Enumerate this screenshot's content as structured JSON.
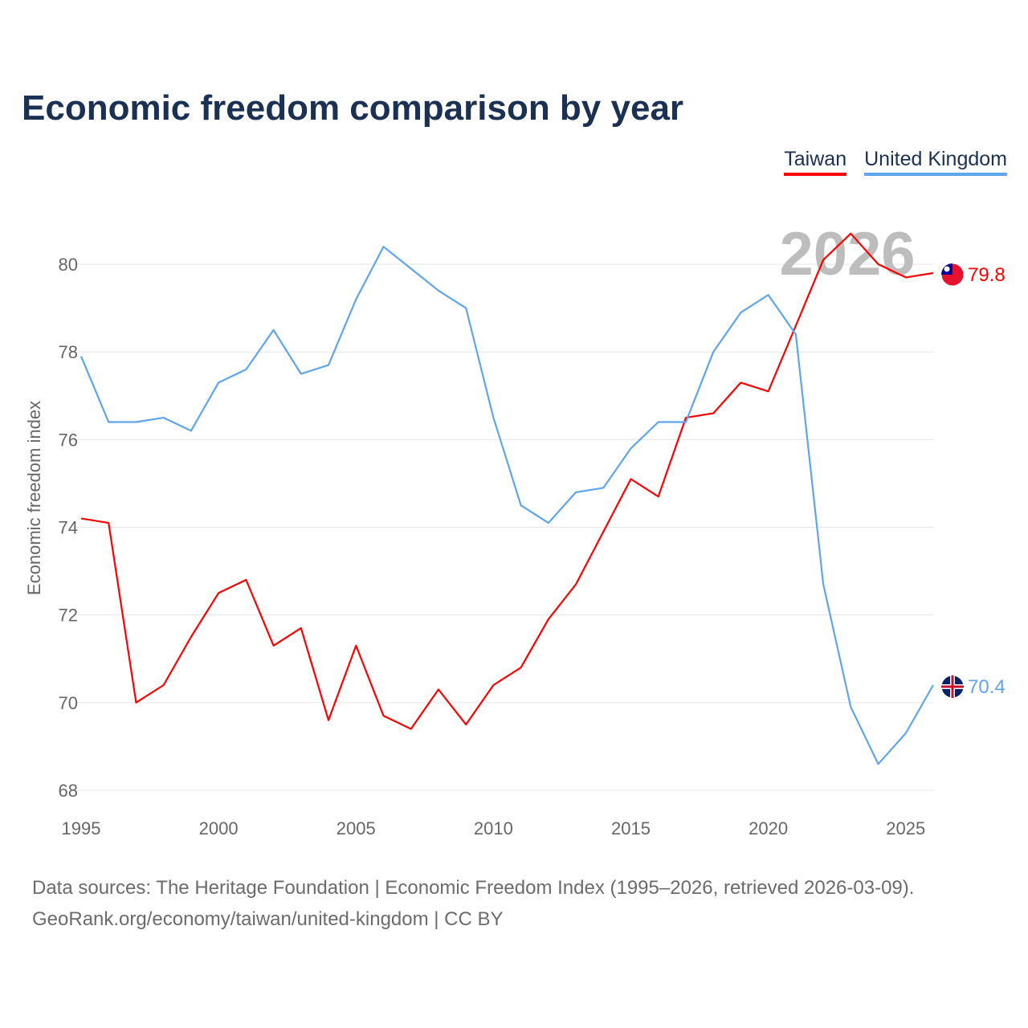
{
  "chart_data": {
    "type": "line",
    "title": "Economic freedom comparison by year",
    "xlabel": "",
    "ylabel": "Economic freedom index",
    "xlim": [
      1995,
      2026
    ],
    "ylim": [
      68,
      81
    ],
    "yticks": [
      68,
      70,
      72,
      74,
      76,
      78,
      80
    ],
    "xticks": [
      1995,
      2000,
      2005,
      2010,
      2015,
      2020,
      2025
    ],
    "grid": true,
    "legend_position": "top-right",
    "highlight_year": "2026",
    "x": [
      1995,
      1996,
      1997,
      1998,
      1999,
      2000,
      2001,
      2002,
      2003,
      2004,
      2005,
      2006,
      2007,
      2008,
      2009,
      2010,
      2011,
      2012,
      2013,
      2014,
      2015,
      2016,
      2017,
      2018,
      2019,
      2020,
      2021,
      2022,
      2023,
      2024,
      2025,
      2026
    ],
    "series": [
      {
        "name": "Taiwan",
        "color": "#ff0000",
        "end_label": "79.8",
        "values": [
          74.2,
          74.1,
          70.0,
          70.4,
          71.5,
          72.5,
          72.8,
          71.3,
          71.7,
          69.6,
          71.3,
          69.7,
          69.4,
          70.3,
          69.5,
          70.4,
          70.8,
          71.9,
          72.7,
          73.9,
          75.1,
          74.7,
          76.5,
          76.6,
          77.3,
          77.1,
          78.6,
          80.1,
          80.7,
          80.0,
          79.7,
          79.8
        ]
      },
      {
        "name": "United Kingdom",
        "color": "#5ea5ec",
        "end_label": "70.4",
        "values": [
          77.9,
          76.4,
          76.4,
          76.5,
          76.2,
          77.3,
          77.6,
          78.5,
          77.5,
          77.7,
          79.2,
          80.4,
          79.9,
          79.4,
          79.0,
          76.5,
          74.5,
          74.1,
          74.8,
          74.9,
          75.8,
          76.4,
          76.4,
          78.0,
          78.9,
          79.3,
          78.4,
          72.7,
          69.9,
          68.6,
          69.3,
          70.4
        ]
      }
    ]
  },
  "footer": {
    "line1": "Data sources: The Heritage Foundation | Economic Freedom Index (1995–2026, retrieved 2026-03-09).",
    "line2": "GeoRank.org/economy/taiwan/united-kingdom | CC BY"
  }
}
